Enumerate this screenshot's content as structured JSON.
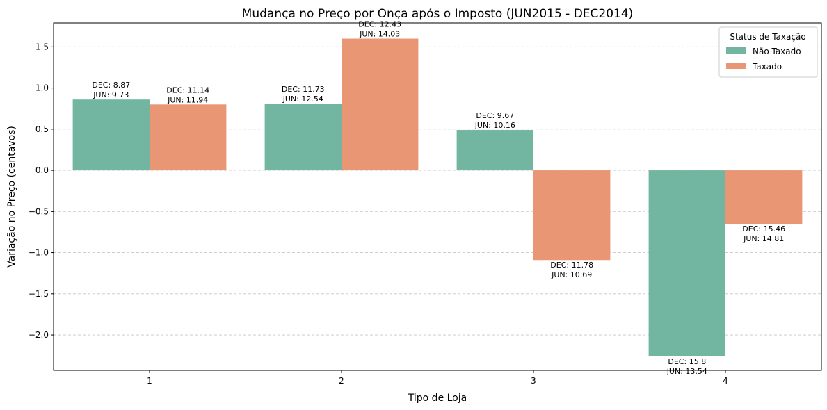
{
  "chart_data": {
    "type": "bar",
    "title": "Mudança no Preço por Onça após o Imposto (JUN2015 - DEC2014)",
    "xlabel": "Tipo de Loja",
    "ylabel": "Variação no Preço (centavos)",
    "categories": [
      "1",
      "2",
      "3",
      "4"
    ],
    "ylim": [
      -2.43,
      1.79
    ],
    "yticks": [
      -2.0,
      -1.5,
      -1.0,
      -0.5,
      0.0,
      0.5,
      1.0,
      1.5
    ],
    "ytick_labels": [
      "−2.0",
      "−1.5",
      "−1.0",
      "−0.5",
      "0.0",
      "0.5",
      "1.0",
      "1.5"
    ],
    "grid": "y-dashed",
    "legend": {
      "title": "Status de Taxação",
      "position": "top-right"
    },
    "series": [
      {
        "name": "Não Taxado",
        "color": "#72b6a1",
        "values": [
          0.86,
          0.81,
          0.49,
          -2.26
        ],
        "labels": [
          {
            "dec": "DEC: 8.87",
            "jun": "JUN: 9.73"
          },
          {
            "dec": "DEC: 11.73",
            "jun": "JUN: 12.54"
          },
          {
            "dec": "DEC: 9.67",
            "jun": "JUN: 10.16"
          },
          {
            "dec": "DEC: 15.8",
            "jun": "JUN: 13.54"
          }
        ]
      },
      {
        "name": "Taxado",
        "color": "#e99675",
        "values": [
          0.8,
          1.6,
          -1.09,
          -0.65
        ],
        "labels": [
          {
            "dec": "DEC: 11.14",
            "jun": "JUN: 11.94"
          },
          {
            "dec": "DEC: 12.43",
            "jun": "JUN: 14.03"
          },
          {
            "dec": "DEC: 11.78",
            "jun": "JUN: 10.69"
          },
          {
            "dec": "DEC: 15.46",
            "jun": "JUN: 14.81"
          }
        ]
      }
    ]
  }
}
